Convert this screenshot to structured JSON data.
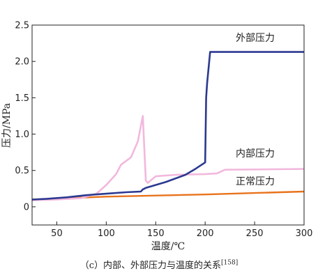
{
  "chart_data": {
    "type": "line",
    "xlabel": "温度/℃",
    "ylabel": "压力/MPa",
    "xlim": [
      25,
      300
    ],
    "ylim": [
      -0.25,
      2.5
    ],
    "xticks": [
      "50",
      "100",
      "150",
      "200",
      "250",
      "300"
    ],
    "yticks": [
      "0",
      "0.5",
      "1.0",
      "1.5",
      "2.0",
      "2.5"
    ],
    "grid": false,
    "series": [
      {
        "name": "外部压力",
        "color": "#2b3990",
        "x": [
          25,
          40,
          60,
          80,
          100,
          120,
          135,
          137,
          140,
          160,
          180,
          190,
          200,
          201,
          202,
          205,
          210,
          300
        ],
        "y": [
          0.1,
          0.11,
          0.13,
          0.16,
          0.18,
          0.2,
          0.21,
          0.24,
          0.26,
          0.34,
          0.44,
          0.52,
          0.61,
          1.5,
          1.7,
          2.13,
          2.13,
          2.13
        ]
      },
      {
        "name": "内部压力",
        "color": "#f2b8dd",
        "x": [
          25,
          50,
          75,
          90,
          100,
          110,
          115,
          125,
          132,
          137,
          140,
          142,
          150,
          170,
          200,
          212,
          220,
          300
        ],
        "y": [
          0.09,
          0.1,
          0.12,
          0.18,
          0.3,
          0.45,
          0.58,
          0.68,
          0.9,
          1.25,
          0.36,
          0.33,
          0.42,
          0.44,
          0.45,
          0.46,
          0.51,
          0.52
        ]
      },
      {
        "name": "正常压力",
        "color": "#e8731c",
        "x": [
          25,
          100,
          200,
          300
        ],
        "y": [
          0.1,
          0.14,
          0.17,
          0.21
        ]
      }
    ]
  },
  "caption": {
    "text": "（c）内部、外部压力与温度的关系",
    "ref": "[158]"
  }
}
